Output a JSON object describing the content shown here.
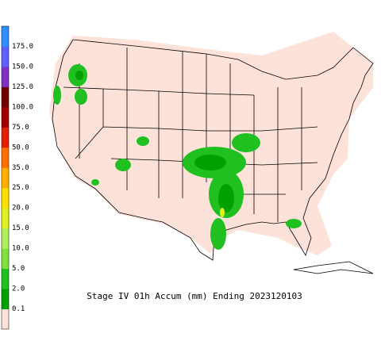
{
  "legend": {
    "labels": [
      "0.1",
      "2.0",
      "5.0",
      "10.0",
      "15.0",
      "20.0",
      "25.0",
      "35.0",
      "50.0",
      "75.0",
      "100.0",
      "125.0",
      "150.0",
      "175.0"
    ],
    "colors": [
      "#fde2da",
      "#00a000",
      "#20c020",
      "#80e040",
      "#b0f060",
      "#e0f020",
      "#ffe000",
      "#ffb000",
      "#ff7000",
      "#e02000",
      "#a00000",
      "#700000",
      "#8030c0",
      "#6060ff",
      "#3090ff"
    ]
  },
  "caption": "Stage IV 01h Accum (mm) Ending 2023120103"
}
